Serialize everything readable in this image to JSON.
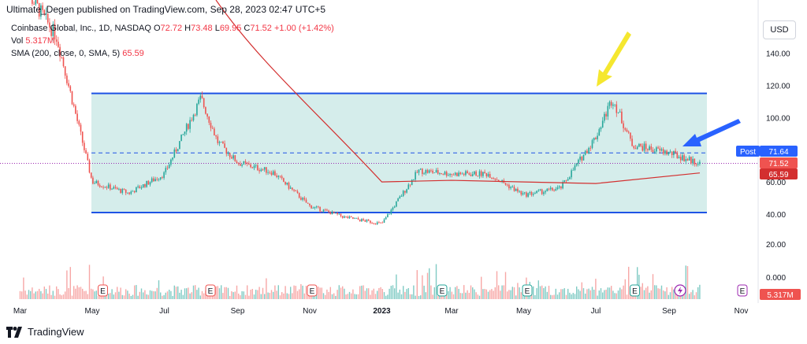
{
  "header": {
    "publisher": "Ultimate_Degen published on TradingView.com, Sep 28, 2023 02:47 UTC+5"
  },
  "legend": {
    "symbol": "Coinbase Global, Inc., 1D, NASDAQ",
    "o_label": "O",
    "o": "72.72",
    "h_label": "H",
    "h": "73.48",
    "l_label": "L",
    "l": "69.95",
    "c_label": "C",
    "c": "71.52",
    "change": "+1.00 (+1.42%)",
    "vol_label": "Vol",
    "vol": "5.317M",
    "sma_label": "SMA (200, close, 0, SMA, 5)",
    "sma": "65.59"
  },
  "currency_button": "USD",
  "footer": {
    "brand": "TradingView"
  },
  "colors": {
    "up": "#26a69a",
    "down": "#ef5350",
    "channel": "#1e53e5",
    "channel_fill": "#b2dfdb",
    "sma": "#d32f2f",
    "arrow_yellow": "#f5e72f",
    "arrow_blue": "#2962ff",
    "post": "#2962ff"
  },
  "chart_data": {
    "type": "candlestick",
    "x_ticks": [
      "Mar",
      "May",
      "Jul",
      "Sep",
      "Nov",
      "2023",
      "Mar",
      "May",
      "Jul",
      "Sep",
      "Nov"
    ],
    "price_ticks": [
      "140.00",
      "120.00",
      "100.00",
      "80.00",
      "60.00",
      "40.00"
    ],
    "volume_ticks": [
      "20.00",
      "0.000"
    ],
    "ylim": [
      30,
      150
    ],
    "price_labels": [
      {
        "name": "Post",
        "value": "71.64"
      },
      {
        "name": "last",
        "value": "71.52"
      },
      {
        "name": "sma",
        "value": "65.59"
      }
    ],
    "volume_label": "5.317M",
    "channel": {
      "upper": 115,
      "lower": 41,
      "mid": 78
    },
    "close_series": [
      {
        "date": "2022-03",
        "close": 185
      },
      {
        "date": "2022-04",
        "close": 150
      },
      {
        "date": "2022-05",
        "close": 60
      },
      {
        "date": "2022-06",
        "close": 53
      },
      {
        "date": "2022-07",
        "close": 65
      },
      {
        "date": "2022-08",
        "close": 112
      },
      {
        "date": "2022-08-15",
        "close": 85
      },
      {
        "date": "2022-09",
        "close": 72
      },
      {
        "date": "2022-10",
        "close": 66
      },
      {
        "date": "2022-11",
        "close": 45
      },
      {
        "date": "2022-12",
        "close": 38
      },
      {
        "date": "2023-01",
        "close": 34
      },
      {
        "date": "2023-02",
        "close": 67
      },
      {
        "date": "2023-03",
        "close": 65
      },
      {
        "date": "2023-04",
        "close": 65
      },
      {
        "date": "2023-05",
        "close": 52
      },
      {
        "date": "2023-06",
        "close": 56
      },
      {
        "date": "2023-07",
        "close": 88
      },
      {
        "date": "2023-07-15",
        "close": 112
      },
      {
        "date": "2023-08",
        "close": 83
      },
      {
        "date": "2023-09",
        "close": 78
      },
      {
        "date": "2023-09-27",
        "close": 71.52
      }
    ],
    "sma_series": [
      {
        "date": "2023-01",
        "sma": 60
      },
      {
        "date": "2023-03",
        "sma": 61
      },
      {
        "date": "2023-05",
        "sma": 60
      },
      {
        "date": "2023-07",
        "sma": 59
      },
      {
        "date": "2023-09-27",
        "sma": 65.59
      }
    ],
    "earnings_markers": [
      "E",
      "E",
      "E",
      "E",
      "E",
      "E",
      "E",
      "E",
      "E"
    ]
  }
}
